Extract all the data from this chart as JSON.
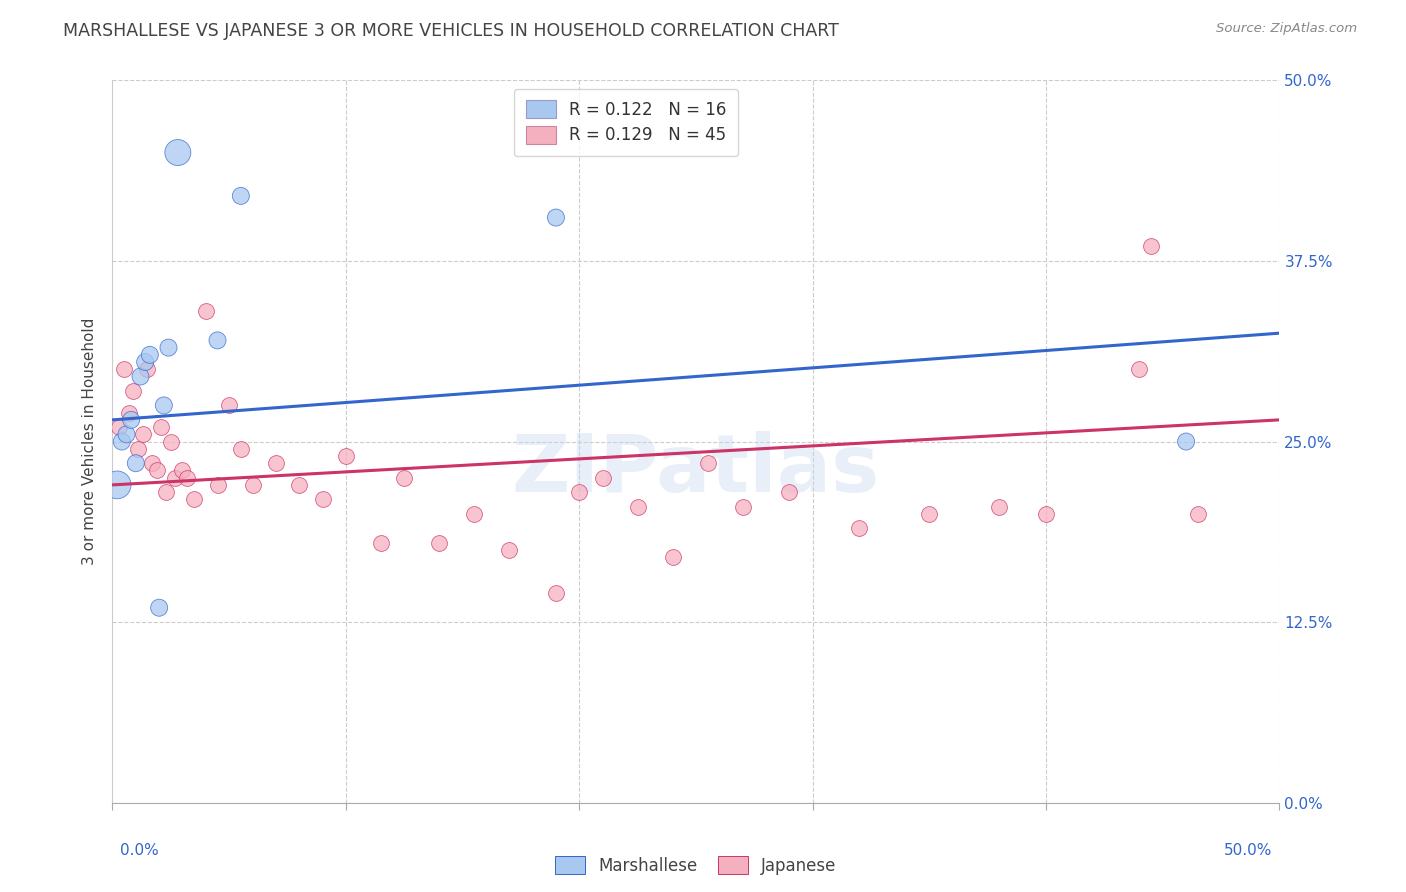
{
  "title": "MARSHALLESE VS JAPANESE 3 OR MORE VEHICLES IN HOUSEHOLD CORRELATION CHART",
  "source": "Source: ZipAtlas.com",
  "ylabel": "3 or more Vehicles in Household",
  "xlim": [
    0.0,
    50.0
  ],
  "ylim": [
    0.0,
    50.0
  ],
  "yticks": [
    0.0,
    12.5,
    25.0,
    37.5,
    50.0
  ],
  "xticks": [
    0.0,
    10.0,
    20.0,
    30.0,
    40.0,
    50.0
  ],
  "legend_blue_r": "0.122",
  "legend_blue_n": "16",
  "legend_pink_r": "0.129",
  "legend_pink_n": "45",
  "watermark": "ZIPatlas",
  "marshallese_x": [
    0.2,
    0.4,
    0.6,
    0.8,
    1.0,
    1.2,
    1.4,
    1.6,
    2.0,
    2.2,
    2.4,
    2.8,
    4.5,
    5.5,
    19.0,
    46.0
  ],
  "marshallese_y": [
    22.0,
    25.0,
    25.5,
    26.5,
    23.5,
    29.5,
    30.5,
    31.0,
    13.5,
    27.5,
    31.5,
    45.0,
    32.0,
    42.0,
    40.5,
    25.0
  ],
  "marshallese_sizes": [
    400,
    150,
    150,
    150,
    150,
    150,
    150,
    150,
    150,
    150,
    150,
    350,
    150,
    150,
    150,
    150
  ],
  "japanese_x": [
    0.3,
    0.5,
    0.7,
    0.9,
    1.1,
    1.3,
    1.5,
    1.7,
    1.9,
    2.1,
    2.3,
    2.5,
    2.7,
    3.0,
    3.2,
    3.5,
    4.0,
    4.5,
    5.0,
    5.5,
    6.0,
    7.0,
    8.0,
    9.0,
    10.0,
    11.5,
    12.5,
    14.0,
    15.5,
    17.0,
    19.0,
    20.0,
    21.0,
    22.5,
    24.0,
    25.5,
    27.0,
    29.0,
    32.0,
    35.0,
    38.0,
    40.0,
    44.0,
    44.5,
    46.5
  ],
  "japanese_y": [
    26.0,
    30.0,
    27.0,
    28.5,
    24.5,
    25.5,
    30.0,
    23.5,
    23.0,
    26.0,
    21.5,
    25.0,
    22.5,
    23.0,
    22.5,
    21.0,
    34.0,
    22.0,
    27.5,
    24.5,
    22.0,
    23.5,
    22.0,
    21.0,
    24.0,
    18.0,
    22.5,
    18.0,
    20.0,
    17.5,
    14.5,
    21.5,
    22.5,
    20.5,
    17.0,
    23.5,
    20.5,
    21.5,
    19.0,
    20.0,
    20.5,
    20.0,
    30.0,
    38.5,
    20.0
  ],
  "blue_color": "#a8c8f0",
  "pink_color": "#f5b0c0",
  "blue_line_color": "#3366cc",
  "pink_line_color": "#cc3366",
  "background_color": "#ffffff",
  "grid_color": "#cccccc",
  "title_color": "#444444",
  "right_axis_color": "#3366cc",
  "blue_line_start_y": 26.5,
  "blue_line_end_y": 32.5,
  "pink_line_start_y": 22.0,
  "pink_line_end_y": 26.5
}
